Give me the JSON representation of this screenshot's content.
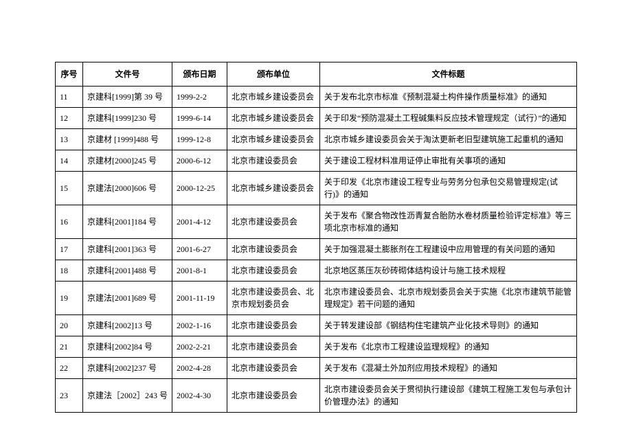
{
  "table": {
    "headers": {
      "seq": "序号",
      "docno": "文件号",
      "date": "颁布日期",
      "unit": "颁布单位",
      "title": "文件标题"
    },
    "rows": [
      {
        "seq": "11",
        "docno": "京建科[1999]第 39 号",
        "date": "1999-2-2",
        "unit": "北京市城乡建设委员会",
        "title": "关于发布北京市标准《预制混凝土构件操作质量标准》的通知"
      },
      {
        "seq": "12",
        "docno": "京建科[1999]230 号",
        "date": "1999-6-14",
        "unit": "北京市城乡建设委员会",
        "title": "关于印发“预防混凝土工程碱集料反应技术管理规定（试行）”的通知"
      },
      {
        "seq": "13",
        "docno": "京建材 [1999]488 号",
        "date": "1999-12-8",
        "unit": "北京市城乡建设委员会",
        "title": "北京市城乡建设委员会关于淘汰更新老旧型建筑施工起重机的通知"
      },
      {
        "seq": "14",
        "docno": "京建材[2000]245 号",
        "date": "2000-6-12",
        "unit": "北京市建设委员会",
        "title": "关于建设工程材料准用证停止审批有关事项的通知"
      },
      {
        "seq": "15",
        "docno": "京建法[2000]606 号",
        "date": "2000-12-25",
        "unit": "北京市城乡建设委员会",
        "title": "关于印发《北京市建设工程专业与劳务分包承包交易管理规定(试行)》的通知"
      },
      {
        "seq": "16",
        "docno": "京建科[2001]184 号",
        "date": "2001-4-12",
        "unit": "北京市建设委员会",
        "title": "关于发布《聚合物改性沥青复合胎防水卷材质量检验评定标准》等三项北京市标准的通知"
      },
      {
        "seq": "17",
        "docno": "京建科[2001]363 号",
        "date": "2001-6-27",
        "unit": "北京市建设委员会",
        "title": "关于加强混凝土膨胀剂在工程建设中应用管理的有关问题的通知"
      },
      {
        "seq": "18",
        "docno": "京建科[2001]488 号",
        "date": "2001-8-1",
        "unit": "北京市建设委员会",
        "title": "北京地区蒸压灰砂砖砌体结构设计与施工技术规程"
      },
      {
        "seq": "19",
        "docno": "京建法[2001]689 号",
        "date": "2001-11-19",
        "unit": "北京市建设委员会、北京市规划委员会",
        "title": "北京市建设委员会、北京市规划委员会关于实施《北京市建筑节能管理规定》若干问题的通知"
      },
      {
        "seq": "20",
        "docno": "京建科[2002]13 号",
        "date": "2002-1-16",
        "unit": "北京市建设委员会",
        "title": "关于转发建设部《钢结构住宅建筑产业化技术导则》的通知"
      },
      {
        "seq": "21",
        "docno": "京建科[2002]84 号",
        "date": "2002-2-21",
        "unit": "北京市建设委员会",
        "title": "关于发布《北京市工程建设监理规程》的通知"
      },
      {
        "seq": "22",
        "docno": "京建科[2002]237 号",
        "date": "2002-4-28",
        "unit": "北京市建设委员会",
        "title": "关于发布《混凝土外加剂应用技术规程》的通知"
      },
      {
        "seq": "23",
        "docno": "京建法［2002］243 号",
        "date": "2002-4-30",
        "unit": "北京市建设委员会",
        "title": "北京市建设委员会关于贯彻执行建设部《建筑工程施工发包与承包计价管理办法》的通知"
      }
    ]
  }
}
